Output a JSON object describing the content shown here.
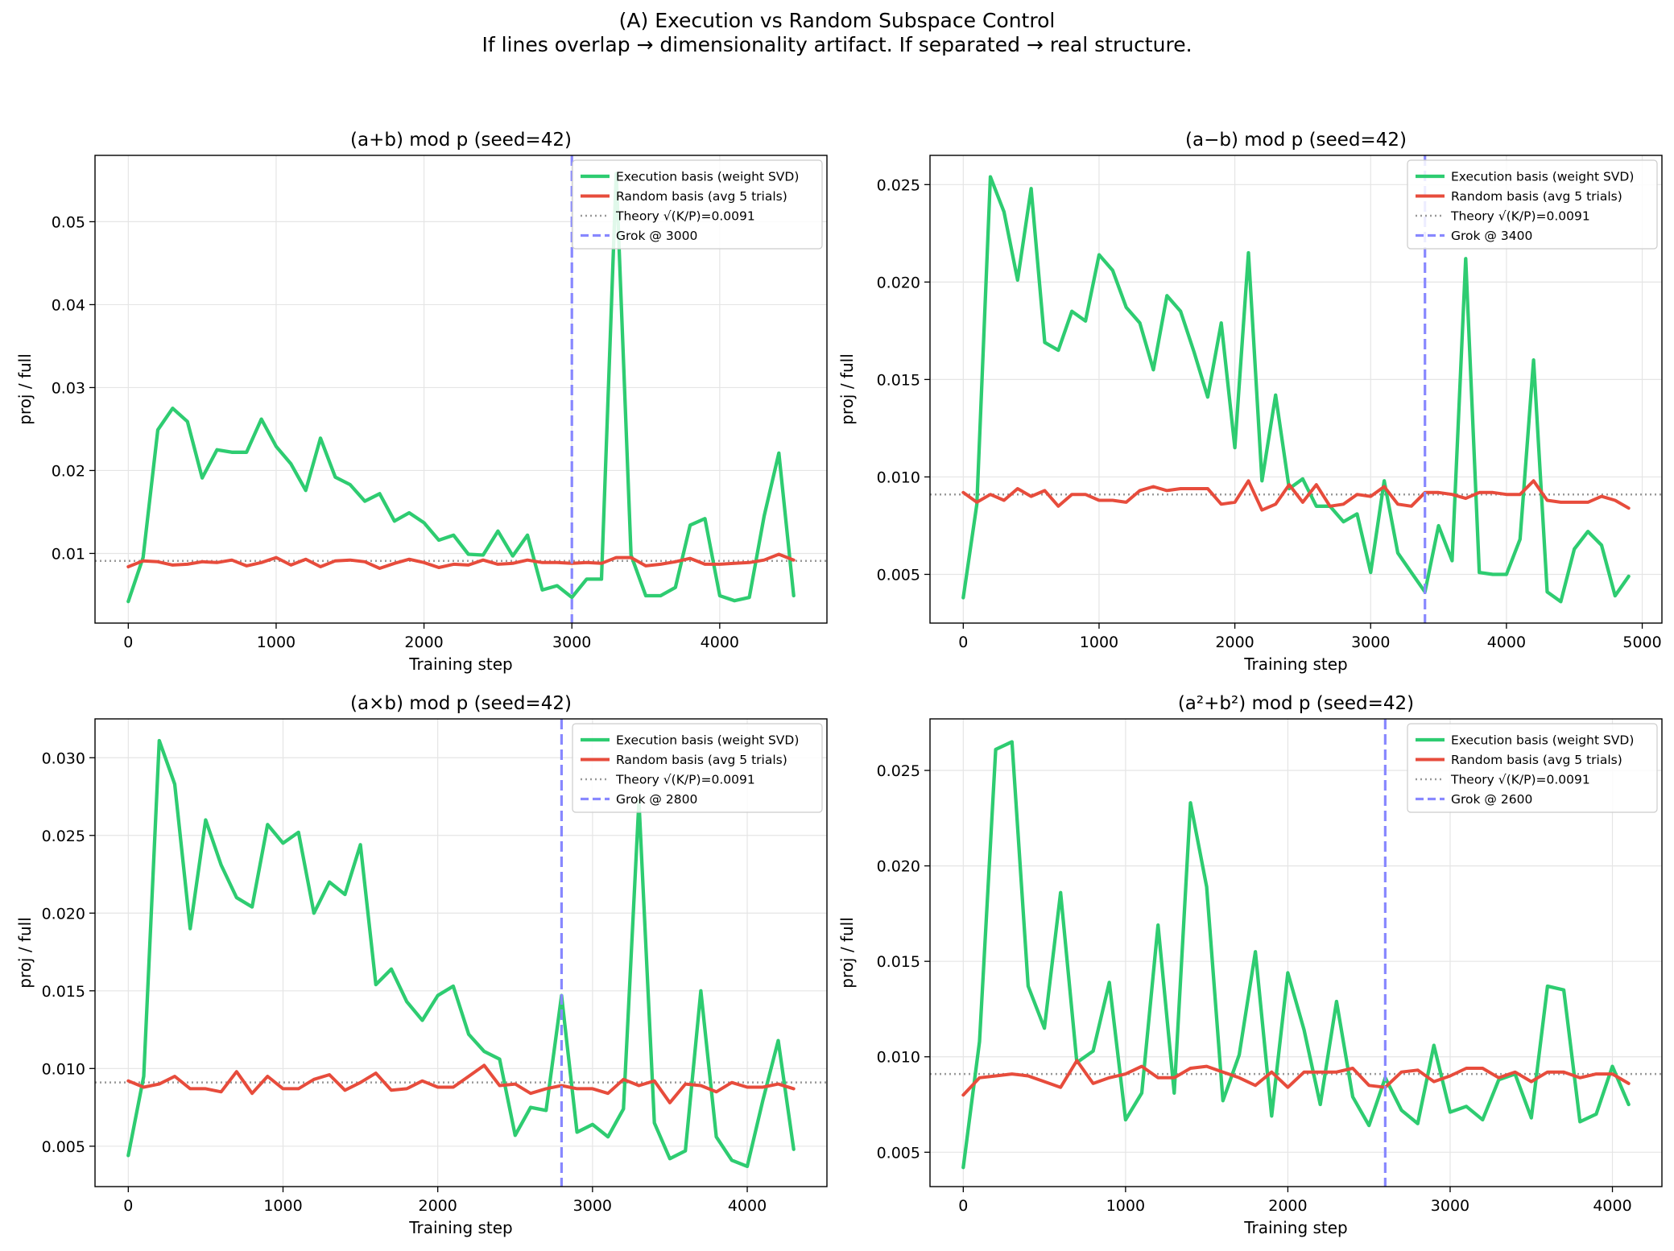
{
  "figure": {
    "title_line1": "(A) Execution vs Random Subspace Control",
    "title_line2": "If lines overlap → dimensionality artifact. If separated → real structure."
  },
  "colors": {
    "execution": "#2ecc71",
    "random": "#e74c3c",
    "theory": "#999999",
    "grok": "#8888ff"
  },
  "chart_data": [
    {
      "type": "line",
      "title": "(a+b) mod p (seed=42)",
      "xlabel": "Training step",
      "ylabel": "proj / full",
      "xlim": [
        -225,
        4725
      ],
      "ylim": [
        0.0016,
        0.058
      ],
      "xticks": [
        0,
        1000,
        2000,
        3000,
        4000
      ],
      "yticks": [
        0.01,
        0.02,
        0.03,
        0.04,
        0.05
      ],
      "ytick_labels": [
        "0.01",
        "0.02",
        "0.03",
        "0.04",
        "0.05"
      ],
      "x": [
        0,
        100,
        200,
        300,
        400,
        500,
        600,
        700,
        800,
        900,
        1000,
        1100,
        1200,
        1300,
        1400,
        1500,
        1600,
        1700,
        1800,
        1900,
        2000,
        2100,
        2200,
        2300,
        2400,
        2500,
        2600,
        2700,
        2800,
        2900,
        3000,
        3100,
        3200,
        3300,
        3400,
        3500,
        3600,
        3700,
        3800,
        3900,
        4000,
        4100,
        4200,
        4300,
        4400,
        4500
      ],
      "series": [
        {
          "name": "Execution basis (weight SVD)",
          "values": [
            0.0042,
            0.0095,
            0.0249,
            0.0275,
            0.0259,
            0.0191,
            0.0225,
            0.0222,
            0.0222,
            0.0262,
            0.0229,
            0.0208,
            0.0176,
            0.0239,
            0.0192,
            0.0183,
            0.0163,
            0.0172,
            0.0139,
            0.0149,
            0.0137,
            0.0116,
            0.0122,
            0.0099,
            0.0098,
            0.0127,
            0.0097,
            0.0122,
            0.0056,
            0.0061,
            0.0047,
            0.0069,
            0.0069,
            0.0558,
            0.0098,
            0.0049,
            0.0049,
            0.0059,
            0.0134,
            0.0142,
            0.0049,
            0.0043,
            0.0047,
            0.0145,
            0.0221,
            0.0049
          ]
        },
        {
          "name": "Random basis (avg 5 trials)",
          "values": [
            0.0084,
            0.0091,
            0.009,
            0.0086,
            0.0087,
            0.009,
            0.0089,
            0.0092,
            0.0085,
            0.0089,
            0.0095,
            0.0086,
            0.0093,
            0.0084,
            0.0091,
            0.0092,
            0.009,
            0.0082,
            0.0088,
            0.0093,
            0.0089,
            0.0083,
            0.0087,
            0.0086,
            0.0092,
            0.0087,
            0.0088,
            0.0092,
            0.0089,
            0.0089,
            0.0088,
            0.0089,
            0.0088,
            0.0095,
            0.0095,
            0.0085,
            0.0087,
            0.009,
            0.0094,
            0.0087,
            0.0087,
            0.0088,
            0.0089,
            0.0092,
            0.0099,
            0.0092
          ]
        }
      ],
      "theory": 0.0091,
      "grok": 3000,
      "legend": [
        "Execution basis (weight SVD)",
        "Random basis (avg 5 trials)",
        "Theory √(K/P)=0.0091",
        "Grok @ 3000"
      ],
      "legend_loc": "upper right"
    },
    {
      "type": "line",
      "title": "(a−b) mod p (seed=42)",
      "xlabel": "Training step",
      "ylabel": "proj / full",
      "xlim": [
        -245,
        5145
      ],
      "ylim": [
        0.0025,
        0.0265
      ],
      "xticks": [
        0,
        1000,
        2000,
        3000,
        4000,
        5000
      ],
      "yticks": [
        0.005,
        0.01,
        0.015,
        0.02,
        0.025
      ],
      "ytick_labels": [
        "0.005",
        "0.010",
        "0.015",
        "0.020",
        "0.025"
      ],
      "x": [
        0,
        100,
        200,
        300,
        400,
        500,
        600,
        700,
        800,
        900,
        1000,
        1100,
        1200,
        1300,
        1400,
        1500,
        1600,
        1700,
        1800,
        1900,
        2000,
        2100,
        2200,
        2300,
        2400,
        2500,
        2600,
        2700,
        2800,
        2900,
        3000,
        3100,
        3200,
        3300,
        3400,
        3500,
        3600,
        3700,
        3800,
        3900,
        4000,
        4100,
        4200,
        4300,
        4400,
        4500,
        4600,
        4700,
        4800,
        4900
      ],
      "series": [
        {
          "name": "Execution basis (weight SVD)",
          "values": [
            0.0038,
            0.0086,
            0.0254,
            0.0236,
            0.0201,
            0.0248,
            0.0169,
            0.0165,
            0.0185,
            0.018,
            0.0214,
            0.0206,
            0.0187,
            0.0179,
            0.0155,
            0.0193,
            0.0185,
            0.0164,
            0.0141,
            0.0179,
            0.0115,
            0.0215,
            0.0098,
            0.0142,
            0.0094,
            0.0099,
            0.0085,
            0.0085,
            0.0077,
            0.0081,
            0.0051,
            0.0098,
            0.0061,
            0.0051,
            0.0041,
            0.0075,
            0.0057,
            0.0212,
            0.0051,
            0.005,
            0.005,
            0.0068,
            0.016,
            0.0041,
            0.0036,
            0.0063,
            0.0072,
            0.0065,
            0.0039,
            0.0049
          ]
        },
        {
          "name": "Random basis (avg 5 trials)",
          "values": [
            0.0092,
            0.0087,
            0.0091,
            0.0088,
            0.0094,
            0.009,
            0.0093,
            0.0085,
            0.0091,
            0.0091,
            0.0088,
            0.0088,
            0.0087,
            0.0093,
            0.0095,
            0.0093,
            0.0094,
            0.0094,
            0.0094,
            0.0086,
            0.0087,
            0.0098,
            0.0083,
            0.0086,
            0.0096,
            0.0087,
            0.0096,
            0.0085,
            0.0086,
            0.0091,
            0.009,
            0.0095,
            0.0086,
            0.0085,
            0.0092,
            0.0092,
            0.0091,
            0.0089,
            0.0092,
            0.0092,
            0.0091,
            0.0091,
            0.0098,
            0.0088,
            0.0087,
            0.0087,
            0.0087,
            0.009,
            0.0088,
            0.0084
          ]
        }
      ],
      "theory": 0.0091,
      "grok": 3400,
      "legend": [
        "Execution basis (weight SVD)",
        "Random basis (avg 5 trials)",
        "Theory √(K/P)=0.0091",
        "Grok @ 3400"
      ],
      "legend_loc": "upper right"
    },
    {
      "type": "line",
      "title": "(a×b) mod p (seed=42)",
      "xlabel": "Training step",
      "ylabel": "proj / full",
      "xlim": [
        -215,
        4515
      ],
      "ylim": [
        0.0024,
        0.0325
      ],
      "xticks": [
        0,
        1000,
        2000,
        3000,
        4000
      ],
      "yticks": [
        0.005,
        0.01,
        0.015,
        0.02,
        0.025,
        0.03
      ],
      "ytick_labels": [
        "0.005",
        "0.010",
        "0.015",
        "0.020",
        "0.025",
        "0.030"
      ],
      "x": [
        0,
        100,
        200,
        300,
        400,
        500,
        600,
        700,
        800,
        900,
        1000,
        1100,
        1200,
        1300,
        1400,
        1500,
        1600,
        1700,
        1800,
        1900,
        2000,
        2100,
        2200,
        2300,
        2400,
        2500,
        2600,
        2700,
        2800,
        2900,
        3000,
        3100,
        3200,
        3300,
        3400,
        3500,
        3600,
        3700,
        3800,
        3900,
        4000,
        4100,
        4200,
        4300
      ],
      "series": [
        {
          "name": "Execution basis (weight SVD)",
          "values": [
            0.0044,
            0.0095,
            0.0311,
            0.0283,
            0.019,
            0.026,
            0.0231,
            0.021,
            0.0204,
            0.0257,
            0.0245,
            0.0252,
            0.02,
            0.022,
            0.0212,
            0.0244,
            0.0154,
            0.0164,
            0.0143,
            0.0131,
            0.0147,
            0.0153,
            0.0122,
            0.0111,
            0.0106,
            0.0057,
            0.0075,
            0.0073,
            0.0147,
            0.0059,
            0.0064,
            0.0056,
            0.0074,
            0.0272,
            0.0065,
            0.0042,
            0.0047,
            0.015,
            0.0056,
            0.0041,
            0.0037,
            0.0079,
            0.0118,
            0.0048
          ]
        },
        {
          "name": "Random basis (avg 5 trials)",
          "values": [
            0.0092,
            0.0088,
            0.009,
            0.0095,
            0.0087,
            0.0087,
            0.0085,
            0.0098,
            0.0084,
            0.0095,
            0.0087,
            0.0087,
            0.0093,
            0.0096,
            0.0086,
            0.0091,
            0.0097,
            0.0086,
            0.0087,
            0.0092,
            0.0088,
            0.0088,
            0.0095,
            0.0102,
            0.0089,
            0.009,
            0.0084,
            0.0087,
            0.0089,
            0.0087,
            0.0087,
            0.0084,
            0.0093,
            0.0089,
            0.0092,
            0.0078,
            0.009,
            0.0089,
            0.0085,
            0.0091,
            0.0088,
            0.0088,
            0.009,
            0.0087
          ]
        }
      ],
      "theory": 0.0091,
      "grok": 2800,
      "legend": [
        "Execution basis (weight SVD)",
        "Random basis (avg 5 trials)",
        "Theory √(K/P)=0.0091",
        "Grok @ 2800"
      ],
      "legend_loc": "upper right"
    },
    {
      "type": "line",
      "title": "(a²+b²) mod p (seed=42)",
      "xlabel": "Training step",
      "ylabel": "proj / full",
      "xlim": [
        -205,
        4305
      ],
      "ylim": [
        0.0032,
        0.0277
      ],
      "xticks": [
        0,
        1000,
        2000,
        3000,
        4000
      ],
      "yticks": [
        0.005,
        0.01,
        0.015,
        0.02,
        0.025
      ],
      "ytick_labels": [
        "0.005",
        "0.010",
        "0.015",
        "0.020",
        "0.025"
      ],
      "x": [
        0,
        100,
        200,
        300,
        400,
        500,
        600,
        700,
        800,
        900,
        1000,
        1100,
        1200,
        1300,
        1400,
        1500,
        1600,
        1700,
        1800,
        1900,
        2000,
        2100,
        2200,
        2300,
        2400,
        2500,
        2600,
        2700,
        2800,
        2900,
        3000,
        3100,
        3200,
        3300,
        3400,
        3500,
        3600,
        3700,
        3800,
        3900,
        4000,
        4100
      ],
      "series": [
        {
          "name": "Execution basis (weight SVD)",
          "values": [
            0.0042,
            0.0108,
            0.0261,
            0.0265,
            0.0137,
            0.0115,
            0.0186,
            0.0097,
            0.0103,
            0.0139,
            0.0067,
            0.0081,
            0.0169,
            0.0081,
            0.0233,
            0.0189,
            0.0077,
            0.0101,
            0.0155,
            0.0069,
            0.0144,
            0.0114,
            0.0075,
            0.0129,
            0.0079,
            0.0064,
            0.0089,
            0.0072,
            0.0065,
            0.0106,
            0.0071,
            0.0074,
            0.0067,
            0.0088,
            0.0091,
            0.0068,
            0.0137,
            0.0135,
            0.0066,
            0.007,
            0.0095,
            0.0075
          ]
        },
        {
          "name": "Random basis (avg 5 trials)",
          "values": [
            0.008,
            0.0089,
            0.009,
            0.0091,
            0.009,
            0.0087,
            0.0084,
            0.0098,
            0.0086,
            0.0089,
            0.0091,
            0.0095,
            0.0089,
            0.0089,
            0.0094,
            0.0095,
            0.0092,
            0.0089,
            0.0085,
            0.0092,
            0.0084,
            0.0092,
            0.0092,
            0.0092,
            0.0094,
            0.0085,
            0.0084,
            0.0092,
            0.0093,
            0.0087,
            0.009,
            0.0094,
            0.0094,
            0.0089,
            0.0092,
            0.0087,
            0.0092,
            0.0092,
            0.0089,
            0.0091,
            0.0091,
            0.0086
          ]
        }
      ],
      "theory": 0.0091,
      "grok": 2600,
      "legend": [
        "Execution basis (weight SVD)",
        "Random basis (avg 5 trials)",
        "Theory √(K/P)=0.0091",
        "Grok @ 2600"
      ],
      "legend_loc": "upper right"
    }
  ]
}
